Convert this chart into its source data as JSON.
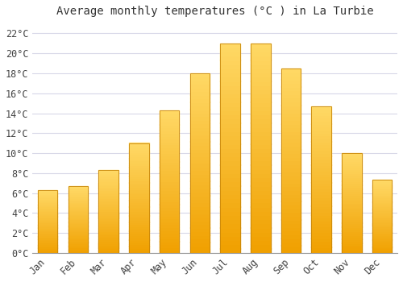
{
  "title": "Average monthly temperatures (°C ) in La Turbie",
  "months": [
    "Jan",
    "Feb",
    "Mar",
    "Apr",
    "May",
    "Jun",
    "Jul",
    "Aug",
    "Sep",
    "Oct",
    "Nov",
    "Dec"
  ],
  "values": [
    6.3,
    6.7,
    8.3,
    11.0,
    14.3,
    18.0,
    21.0,
    21.0,
    18.5,
    14.7,
    10.0,
    7.3
  ],
  "bar_color_top": "#FFD966",
  "bar_color_bottom": "#F0A000",
  "bar_edge_color": "#C8860A",
  "ylim": [
    0,
    23
  ],
  "yticks": [
    0,
    2,
    4,
    6,
    8,
    10,
    12,
    14,
    16,
    18,
    20,
    22
  ],
  "ytick_labels": [
    "0°C",
    "2°C",
    "4°C",
    "6°C",
    "8°C",
    "10°C",
    "12°C",
    "14°C",
    "16°C",
    "18°C",
    "20°C",
    "22°C"
  ],
  "grid_color": "#d8d8e8",
  "background_color": "#ffffff",
  "plot_bg_color": "#ffffff",
  "title_fontsize": 10,
  "tick_fontsize": 8.5,
  "bar_width": 0.65
}
